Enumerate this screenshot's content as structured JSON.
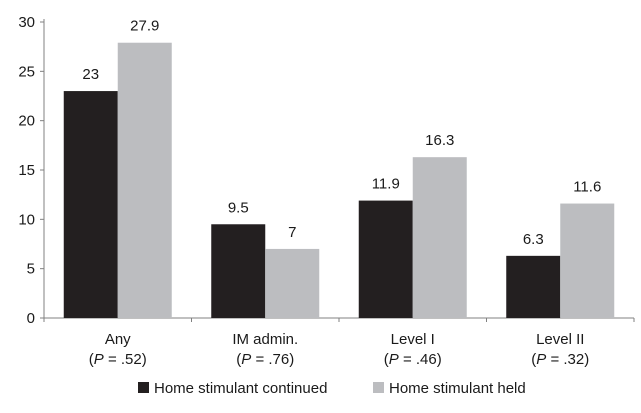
{
  "chart_data": {
    "type": "bar",
    "title": "",
    "xlabel": "",
    "ylabel": "",
    "ylim": [
      0,
      30
    ],
    "yticks": [
      0,
      5,
      10,
      15,
      20,
      25,
      30
    ],
    "grid": false,
    "legend_position": "bottom",
    "categories": [
      {
        "name": "Any",
        "p_label": "P",
        "p_value": " = .52"
      },
      {
        "name": "IM admin.",
        "p_label": "P",
        "p_value": " = .76"
      },
      {
        "name": "Level I",
        "p_label": "P",
        "p_value": " = .46"
      },
      {
        "name": "Level II",
        "p_label": "P",
        "p_value": " = .32"
      }
    ],
    "series": [
      {
        "name": "Home stimulant continued",
        "color": "#231f20",
        "values": [
          23,
          9.5,
          11.9,
          6.3
        ],
        "labels": [
          "23",
          "9.5",
          "11.9",
          "6.3"
        ]
      },
      {
        "name": "Home stimulant held",
        "color": "#bcbdc0",
        "values": [
          27.9,
          7,
          16.3,
          11.6
        ],
        "labels": [
          "27.9",
          "7",
          "16.3",
          "11.6"
        ]
      }
    ]
  }
}
